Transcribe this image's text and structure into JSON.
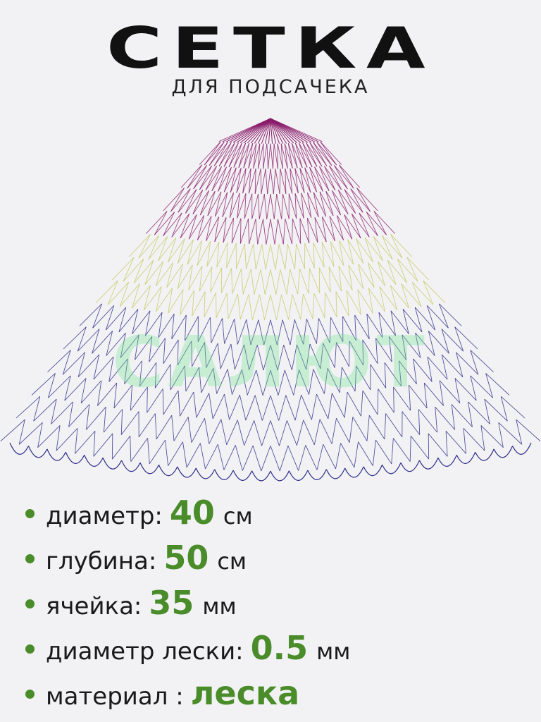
{
  "header": {
    "title": "СЕТКА",
    "subtitle": "ДЛЯ ПОДСАЧЕКА"
  },
  "watermark": "САЛЮТ",
  "colors": {
    "accent": "#4a8c2a",
    "net_top": "#8a1a6a",
    "net_middle": "#c8c860",
    "net_bottom": "#2a2a8a"
  },
  "specs": [
    {
      "label": "диаметр:",
      "value": "40",
      "unit": "см"
    },
    {
      "label": "глубина:",
      "value": "50",
      "unit": "см"
    },
    {
      "label": "ячейка:",
      "value": "35",
      "unit": "мм"
    },
    {
      "label": "диаметр лески:",
      "value": "0.5",
      "unit": "мм"
    },
    {
      "label": "материал :",
      "value": "леска",
      "unit": ""
    }
  ]
}
